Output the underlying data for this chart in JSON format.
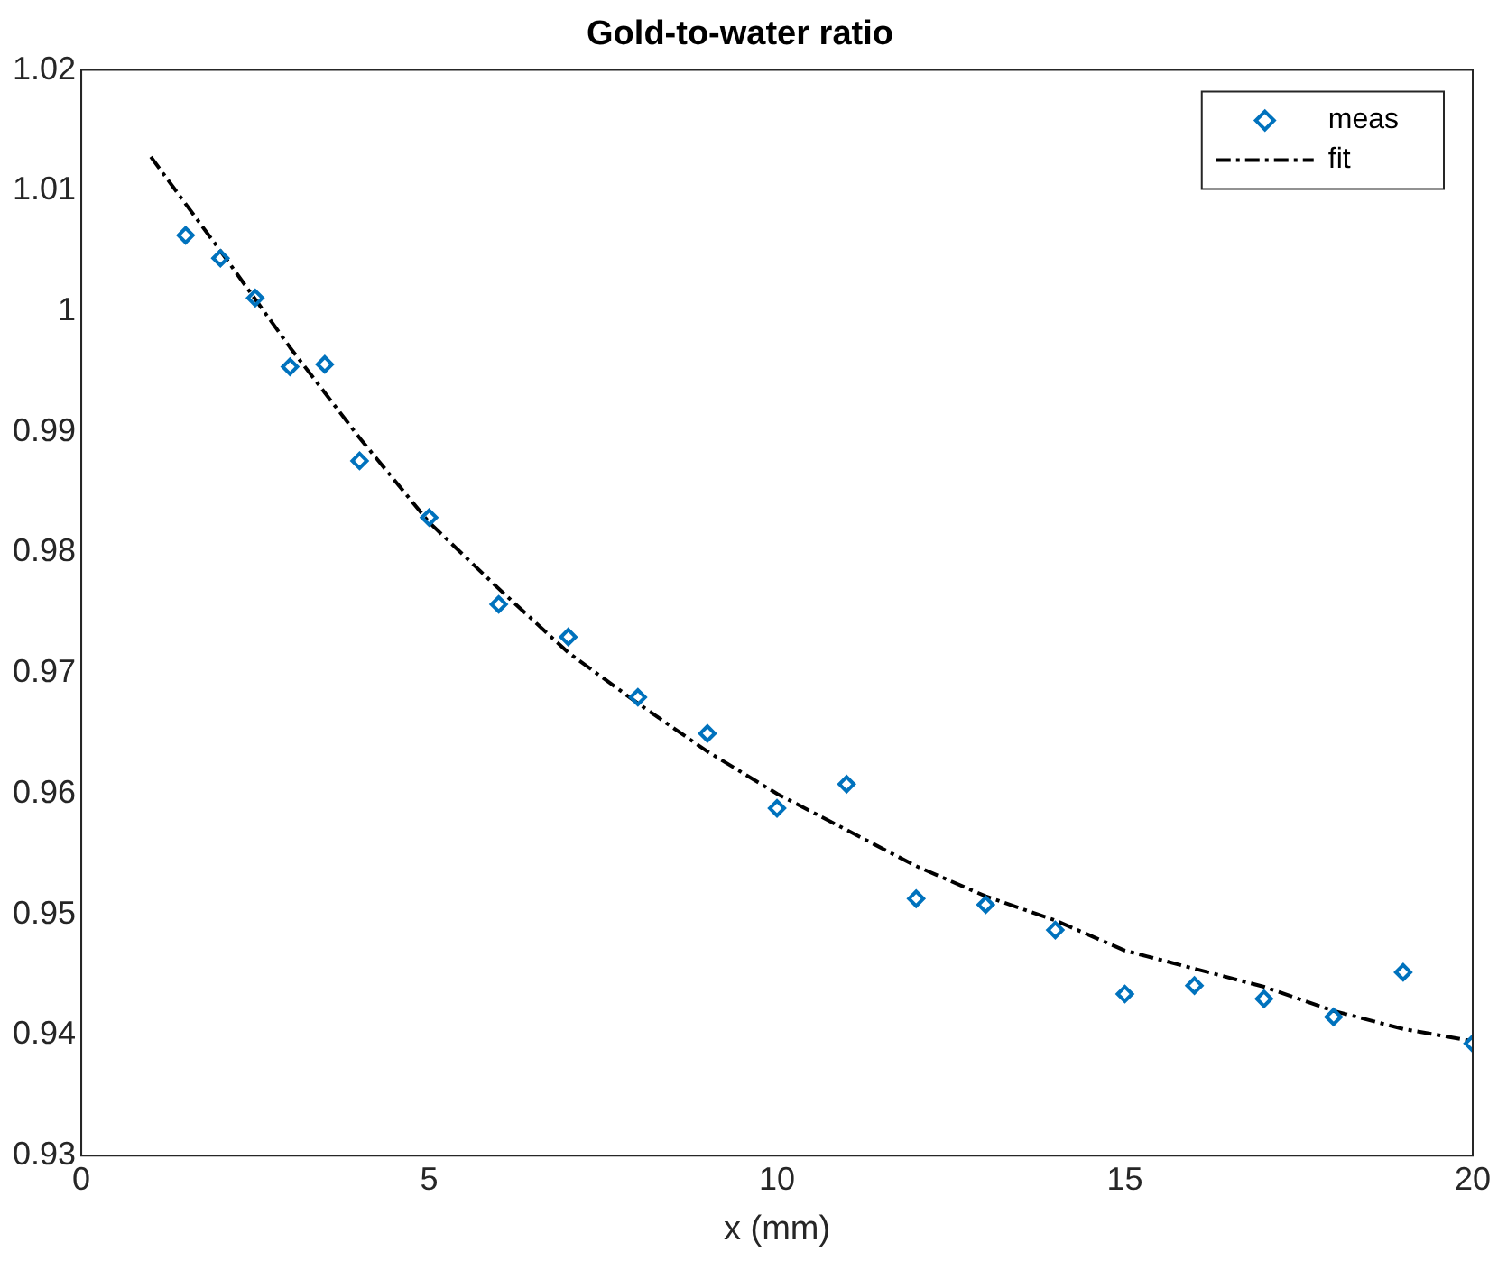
{
  "chart_data": {
    "type": "scatter",
    "title": "Gold-to-water ratio",
    "xlabel": "x (mm)",
    "xlim": [
      0,
      20
    ],
    "xticks": [
      0,
      5,
      10,
      15,
      20
    ],
    "ylim": [
      0.93,
      1.02
    ],
    "yticks": [
      0.93,
      0.94,
      0.95,
      0.96,
      0.97,
      0.98,
      0.99,
      1,
      1.01,
      1.02
    ],
    "grid": false,
    "legend": "top right",
    "series": [
      {
        "name": "meas",
        "type": "scatter",
        "marker": "diamond",
        "color": "#0072bd",
        "x": [
          1.5,
          2,
          2.5,
          3,
          3.5,
          4,
          5,
          6,
          7,
          8,
          9,
          10,
          11,
          12,
          13,
          14,
          15,
          16,
          17,
          18,
          19,
          20
        ],
        "values": [
          1.0063,
          1.0044,
          1.0011,
          0.9954,
          0.9956,
          0.9876,
          0.9829,
          0.9757,
          0.973,
          0.968,
          0.965,
          0.9588,
          0.9608,
          0.9513,
          0.9508,
          0.9487,
          0.9434,
          0.9441,
          0.943,
          0.9415,
          0.9452,
          0.9393
        ]
      },
      {
        "name": "fit",
        "type": "line",
        "marker": "none",
        "line_style": "dashdot",
        "color": "#000000",
        "x": [
          1,
          2,
          3,
          4,
          5,
          6,
          7,
          8,
          9,
          10,
          11,
          12,
          13,
          14,
          15,
          16,
          17,
          18,
          19,
          20
        ],
        "values": [
          1.0128,
          1.005,
          0.997,
          0.9895,
          0.9825,
          0.977,
          0.9717,
          0.9675,
          0.9635,
          0.96,
          0.957,
          0.954,
          0.9515,
          0.9495,
          0.947,
          0.9455,
          0.944,
          0.942,
          0.9405,
          0.9395
        ]
      }
    ]
  }
}
